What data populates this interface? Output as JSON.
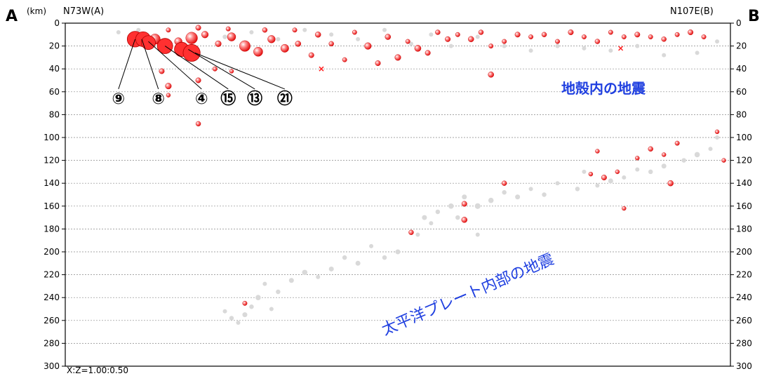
{
  "chart_data": {
    "type": "scatter",
    "title": "",
    "unit_label": "(km)",
    "ylabel": "",
    "endpoint_left": "A",
    "endpoint_right": "B",
    "direction_left": "N73W(A)",
    "direction_right": "N107E(B)",
    "scale_note": "X:Z=1.00:0.50",
    "x_range": [
      0,
      1
    ],
    "ylim": [
      0,
      300
    ],
    "y_inverted": true,
    "yticks": [
      0,
      20,
      40,
      60,
      80,
      100,
      120,
      140,
      160,
      180,
      200,
      220,
      240,
      260,
      280,
      300
    ],
    "grid": "horizontal dotted",
    "colors": {
      "highlight": "#ff3030",
      "background_quakes": "#d9d9d9",
      "annotation_text": "#1f3fe0",
      "cross_marker": "#ff2020"
    },
    "annotations": [
      {
        "text": "地殻内の地震",
        "x": 0.77,
        "y": 60
      },
      {
        "text": "太平洋プレート内部の地震",
        "x": 0.63,
        "y": 232
      }
    ],
    "series": [
      {
        "role": "highlighted_earthquakes",
        "points": [
          {
            "x": 0.135,
            "y": 14,
            "m": 5.5
          },
          {
            "x": 0.17,
            "y": 16,
            "m": 4.8
          },
          {
            "x": 0.19,
            "y": 13,
            "m": 5.8
          },
          {
            "x": 0.21,
            "y": 10,
            "m": 4.6
          },
          {
            "x": 0.23,
            "y": 18,
            "m": 4.4
          },
          {
            "x": 0.25,
            "y": 12,
            "m": 5.0
          },
          {
            "x": 0.27,
            "y": 20,
            "m": 5.6
          },
          {
            "x": 0.29,
            "y": 25,
            "m": 5.2
          },
          {
            "x": 0.31,
            "y": 14,
            "m": 4.8
          },
          {
            "x": 0.33,
            "y": 22,
            "m": 4.9
          },
          {
            "x": 0.35,
            "y": 18,
            "m": 4.3
          },
          {
            "x": 0.37,
            "y": 28,
            "m": 4.2
          },
          {
            "x": 0.155,
            "y": 6,
            "m": 4.0
          },
          {
            "x": 0.2,
            "y": 4,
            "m": 4.2
          },
          {
            "x": 0.245,
            "y": 5,
            "m": 4.0
          },
          {
            "x": 0.3,
            "y": 6,
            "m": 4.1
          },
          {
            "x": 0.345,
            "y": 6,
            "m": 4.0
          },
          {
            "x": 0.38,
            "y": 10,
            "m": 4.3
          },
          {
            "x": 0.4,
            "y": 18,
            "m": 4.1
          },
          {
            "x": 0.42,
            "y": 32,
            "m": 4.0
          },
          {
            "x": 0.435,
            "y": 8,
            "m": 4.0
          },
          {
            "x": 0.455,
            "y": 20,
            "m": 4.6
          },
          {
            "x": 0.47,
            "y": 35,
            "m": 4.2
          },
          {
            "x": 0.485,
            "y": 12,
            "m": 4.3
          },
          {
            "x": 0.5,
            "y": 30,
            "m": 4.4
          },
          {
            "x": 0.515,
            "y": 16,
            "m": 4.0
          },
          {
            "x": 0.53,
            "y": 22,
            "m": 4.5
          },
          {
            "x": 0.545,
            "y": 26,
            "m": 4.2
          },
          {
            "x": 0.56,
            "y": 8,
            "m": 4.1
          },
          {
            "x": 0.575,
            "y": 14,
            "m": 4.2
          },
          {
            "x": 0.59,
            "y": 10,
            "m": 4.0
          },
          {
            "x": 0.61,
            "y": 14,
            "m": 4.3
          },
          {
            "x": 0.625,
            "y": 8,
            "m": 4.1
          },
          {
            "x": 0.64,
            "y": 20,
            "m": 4.0
          },
          {
            "x": 0.66,
            "y": 16,
            "m": 4.0
          },
          {
            "x": 0.68,
            "y": 10,
            "m": 4.2
          },
          {
            "x": 0.7,
            "y": 12,
            "m": 4.0
          },
          {
            "x": 0.72,
            "y": 10,
            "m": 4.1
          },
          {
            "x": 0.74,
            "y": 16,
            "m": 4.0
          },
          {
            "x": 0.76,
            "y": 8,
            "m": 4.2
          },
          {
            "x": 0.78,
            "y": 12,
            "m": 4.0
          },
          {
            "x": 0.8,
            "y": 16,
            "m": 4.1
          },
          {
            "x": 0.82,
            "y": 8,
            "m": 4.0
          },
          {
            "x": 0.84,
            "y": 12,
            "m": 4.0
          },
          {
            "x": 0.86,
            "y": 10,
            "m": 4.2
          },
          {
            "x": 0.88,
            "y": 12,
            "m": 4.0
          },
          {
            "x": 0.9,
            "y": 14,
            "m": 4.1
          },
          {
            "x": 0.92,
            "y": 10,
            "m": 4.0
          },
          {
            "x": 0.94,
            "y": 8,
            "m": 4.2
          },
          {
            "x": 0.96,
            "y": 12,
            "m": 4.0
          },
          {
            "x": 0.145,
            "y": 42,
            "m": 4.2
          },
          {
            "x": 0.155,
            "y": 55,
            "m": 4.4
          },
          {
            "x": 0.155,
            "y": 63,
            "m": 3.8
          },
          {
            "x": 0.2,
            "y": 50,
            "m": 4.2
          },
          {
            "x": 0.225,
            "y": 40,
            "m": 4.0
          },
          {
            "x": 0.2,
            "y": 88,
            "m": 4.1
          },
          {
            "x": 0.25,
            "y": 42,
            "m": 3.6
          },
          {
            "x": 0.64,
            "y": 45,
            "m": 4.3
          },
          {
            "x": 0.66,
            "y": 140,
            "m": 4.1
          },
          {
            "x": 0.6,
            "y": 158,
            "m": 4.2
          },
          {
            "x": 0.6,
            "y": 172,
            "m": 4.3
          },
          {
            "x": 0.52,
            "y": 183,
            "m": 4.1
          },
          {
            "x": 0.27,
            "y": 245,
            "m": 4.0
          },
          {
            "x": 0.8,
            "y": 112,
            "m": 3.8
          },
          {
            "x": 0.79,
            "y": 132,
            "m": 3.9
          },
          {
            "x": 0.81,
            "y": 135,
            "m": 4.2
          },
          {
            "x": 0.83,
            "y": 130,
            "m": 3.8
          },
          {
            "x": 0.84,
            "y": 162,
            "m": 3.7
          },
          {
            "x": 0.86,
            "y": 118,
            "m": 3.9
          },
          {
            "x": 0.88,
            "y": 110,
            "m": 4.1
          },
          {
            "x": 0.9,
            "y": 115,
            "m": 3.8
          },
          {
            "x": 0.91,
            "y": 140,
            "m": 4.3
          },
          {
            "x": 0.92,
            "y": 105,
            "m": 4.0
          },
          {
            "x": 0.98,
            "y": 95,
            "m": 3.7
          },
          {
            "x": 0.99,
            "y": 120,
            "m": 3.8
          }
        ]
      },
      {
        "role": "background_earthquakes",
        "points": [
          {
            "x": 0.24,
            "y": 12,
            "m": 4.0
          },
          {
            "x": 0.28,
            "y": 8,
            "m": 3.8
          },
          {
            "x": 0.32,
            "y": 14,
            "m": 3.9
          },
          {
            "x": 0.36,
            "y": 6,
            "m": 3.7
          },
          {
            "x": 0.4,
            "y": 10,
            "m": 3.8
          },
          {
            "x": 0.44,
            "y": 14,
            "m": 3.8
          },
          {
            "x": 0.48,
            "y": 6,
            "m": 3.7
          },
          {
            "x": 0.52,
            "y": 18,
            "m": 3.9
          },
          {
            "x": 0.55,
            "y": 10,
            "m": 3.8
          },
          {
            "x": 0.58,
            "y": 20,
            "m": 3.7
          },
          {
            "x": 0.62,
            "y": 12,
            "m": 3.8
          },
          {
            "x": 0.66,
            "y": 20,
            "m": 3.7
          },
          {
            "x": 0.7,
            "y": 24,
            "m": 3.6
          },
          {
            "x": 0.74,
            "y": 20,
            "m": 3.7
          },
          {
            "x": 0.78,
            "y": 22,
            "m": 3.6
          },
          {
            "x": 0.82,
            "y": 24,
            "m": 3.7
          },
          {
            "x": 0.86,
            "y": 20,
            "m": 3.6
          },
          {
            "x": 0.9,
            "y": 28,
            "m": 3.7
          },
          {
            "x": 0.95,
            "y": 26,
            "m": 3.6
          },
          {
            "x": 0.98,
            "y": 16,
            "m": 3.7
          },
          {
            "x": 0.08,
            "y": 8,
            "m": 3.6
          },
          {
            "x": 0.11,
            "y": 6,
            "m": 3.5
          },
          {
            "x": 0.98,
            "y": 100,
            "m": 3.8
          },
          {
            "x": 0.97,
            "y": 110,
            "m": 3.7
          },
          {
            "x": 0.95,
            "y": 115,
            "m": 4.2
          },
          {
            "x": 0.93,
            "y": 120,
            "m": 4.0
          },
          {
            "x": 0.9,
            "y": 125,
            "m": 4.1
          },
          {
            "x": 0.88,
            "y": 130,
            "m": 4.0
          },
          {
            "x": 0.86,
            "y": 128,
            "m": 3.9
          },
          {
            "x": 0.84,
            "y": 135,
            "m": 3.9
          },
          {
            "x": 0.82,
            "y": 138,
            "m": 4.1
          },
          {
            "x": 0.8,
            "y": 142,
            "m": 3.8
          },
          {
            "x": 0.78,
            "y": 130,
            "m": 3.7
          },
          {
            "x": 0.77,
            "y": 145,
            "m": 4.0
          },
          {
            "x": 0.74,
            "y": 140,
            "m": 3.8
          },
          {
            "x": 0.72,
            "y": 150,
            "m": 4.0
          },
          {
            "x": 0.7,
            "y": 145,
            "m": 3.9
          },
          {
            "x": 0.68,
            "y": 152,
            "m": 4.1
          },
          {
            "x": 0.66,
            "y": 148,
            "m": 4.0
          },
          {
            "x": 0.64,
            "y": 155,
            "m": 4.2
          },
          {
            "x": 0.62,
            "y": 160,
            "m": 4.3
          },
          {
            "x": 0.6,
            "y": 152,
            "m": 4.1
          },
          {
            "x": 0.58,
            "y": 160,
            "m": 4.2
          },
          {
            "x": 0.56,
            "y": 165,
            "m": 4.0
          },
          {
            "x": 0.55,
            "y": 175,
            "m": 3.9
          },
          {
            "x": 0.54,
            "y": 170,
            "m": 4.1
          },
          {
            "x": 0.53,
            "y": 185,
            "m": 3.8
          },
          {
            "x": 0.62,
            "y": 185,
            "m": 3.7
          },
          {
            "x": 0.59,
            "y": 170,
            "m": 4.0
          },
          {
            "x": 0.5,
            "y": 200,
            "m": 4.1
          },
          {
            "x": 0.48,
            "y": 205,
            "m": 4.0
          },
          {
            "x": 0.46,
            "y": 195,
            "m": 3.9
          },
          {
            "x": 0.44,
            "y": 210,
            "m": 4.1
          },
          {
            "x": 0.42,
            "y": 205,
            "m": 4.0
          },
          {
            "x": 0.4,
            "y": 215,
            "m": 4.1
          },
          {
            "x": 0.38,
            "y": 222,
            "m": 3.9
          },
          {
            "x": 0.36,
            "y": 218,
            "m": 4.2
          },
          {
            "x": 0.34,
            "y": 225,
            "m": 4.1
          },
          {
            "x": 0.32,
            "y": 235,
            "m": 4.0
          },
          {
            "x": 0.3,
            "y": 228,
            "m": 3.9
          },
          {
            "x": 0.29,
            "y": 240,
            "m": 4.2
          },
          {
            "x": 0.28,
            "y": 248,
            "m": 4.0
          },
          {
            "x": 0.27,
            "y": 255,
            "m": 4.1
          },
          {
            "x": 0.26,
            "y": 262,
            "m": 3.8
          },
          {
            "x": 0.25,
            "y": 258,
            "m": 4.0
          },
          {
            "x": 0.24,
            "y": 252,
            "m": 3.9
          },
          {
            "x": 0.31,
            "y": 250,
            "m": 3.7
          }
        ]
      }
    ],
    "markers": [
      {
        "type": "cross",
        "x": 0.385,
        "y": 40
      },
      {
        "type": "cross",
        "x": 0.835,
        "y": 22
      }
    ],
    "callouts": [
      {
        "label": "⑨",
        "x": 0.105,
        "y": 14,
        "label_x": 0.08,
        "label_y": 65
      },
      {
        "label": "⑧",
        "x": 0.115,
        "y": 14,
        "label_x": 0.14,
        "label_y": 65
      },
      {
        "label": "④",
        "x": 0.125,
        "y": 16,
        "label_x": 0.205,
        "label_y": 65
      },
      {
        "label": "⑮",
        "x": 0.15,
        "y": 20,
        "label_x": 0.245,
        "label_y": 65
      },
      {
        "label": "⑬",
        "x": 0.185,
        "y": 23,
        "label_x": 0.285,
        "label_y": 65
      },
      {
        "label": "㉑",
        "x": 0.195,
        "y": 26,
        "label_x": 0.33,
        "label_y": 65
      }
    ],
    "major_events": [
      {
        "x": 0.105,
        "y": 14,
        "m": 6.4
      },
      {
        "x": 0.117,
        "y": 14,
        "m": 6.2
      },
      {
        "x": 0.125,
        "y": 17,
        "m": 6.0
      },
      {
        "x": 0.15,
        "y": 20,
        "m": 6.3
      },
      {
        "x": 0.175,
        "y": 23,
        "m": 6.1
      },
      {
        "x": 0.19,
        "y": 26,
        "m": 6.7
      }
    ]
  }
}
